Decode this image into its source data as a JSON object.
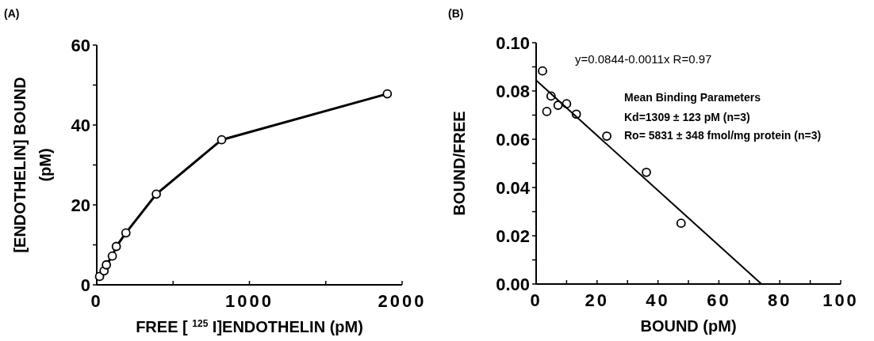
{
  "chart_data": [
    {
      "type": "line",
      "title": "(A)",
      "xlabel": "FREE [ $^{125}$ I]ENDOTHELIN (pM)",
      "ylabel": "[ENDOTHELIN] BOUND\n(pM)",
      "xlim": [
        0,
        2000
      ],
      "ylim": [
        0,
        60
      ],
      "xticks": [
        0,
        {
          "value": 500,
          "label": null
        },
        1000,
        {
          "value": 1500,
          "label": null
        },
        2000
      ],
      "yticks": [
        0,
        {
          "value": 10,
          "label": null
        },
        20,
        {
          "value": 30,
          "label": null
        },
        40,
        {
          "value": 50,
          "label": null
        },
        60
      ],
      "marker": "circle",
      "series": [
        {
          "color": "#000000",
          "x": [
            18.5,
            48,
            63,
            102,
            128,
            191,
            390,
            818,
            1903
          ],
          "values": [
            2.1,
            3.5,
            5.0,
            7.2,
            9.6,
            13.0,
            22.7,
            36.3,
            47.8
          ]
        }
      ]
    },
    {
      "type": "scatter",
      "title": "(B)",
      "xlabel": "BOUND (pM)",
      "ylabel": "BOUND/FREE",
      "xlim": [
        0,
        100
      ],
      "ylim": [
        0,
        0.1
      ],
      "xticks": [
        0,
        {
          "value": 10,
          "label": null
        },
        20,
        {
          "value": 30,
          "label": null
        },
        40,
        {
          "value": 50,
          "label": null
        },
        60,
        {
          "value": 70,
          "label": null
        },
        80,
        {
          "value": 90,
          "label": null
        },
        100
      ],
      "yticks": [
        {
          "value": 0,
          "label": "0.00"
        },
        {
          "value": 0.01,
          "label": null
        },
        {
          "value": 0.02,
          "label": "0.02"
        },
        {
          "value": 0.03,
          "label": null
        },
        {
          "value": 0.04,
          "label": "0.04"
        },
        {
          "value": 0.05,
          "label": null
        },
        {
          "value": 0.06,
          "label": "0.06"
        },
        {
          "value": 0.07,
          "label": null
        },
        {
          "value": 0.08,
          "label": "0.08"
        },
        {
          "value": 0.09,
          "label": null
        },
        {
          "value": 0.1,
          "label": "0.10"
        }
      ],
      "annotations": [
        "y=0.0844-0.0011x R=0.97",
        "Mean Binding Parameters",
        "Kd=1309 ± 123 pM (n=3)",
        "Ro= 5831 ± 348 fmol/mg protein (n=3)"
      ],
      "series": [
        {
          "marker": "circle",
          "color": "#000000",
          "x": [
            2.1,
            3.5,
            4.9,
            7.2,
            10.0,
            13.2,
            23.2,
            36.2,
            47.6
          ],
          "values": [
            0.0883,
            0.0715,
            0.0779,
            0.0741,
            0.0747,
            0.0704,
            0.0613,
            0.0463,
            0.0252
          ]
        },
        {
          "type": "line",
          "marker": "none",
          "color": "#000000",
          "x": [
            0,
            74
          ],
          "values": [
            0.0844,
            0
          ]
        }
      ]
    }
  ]
}
